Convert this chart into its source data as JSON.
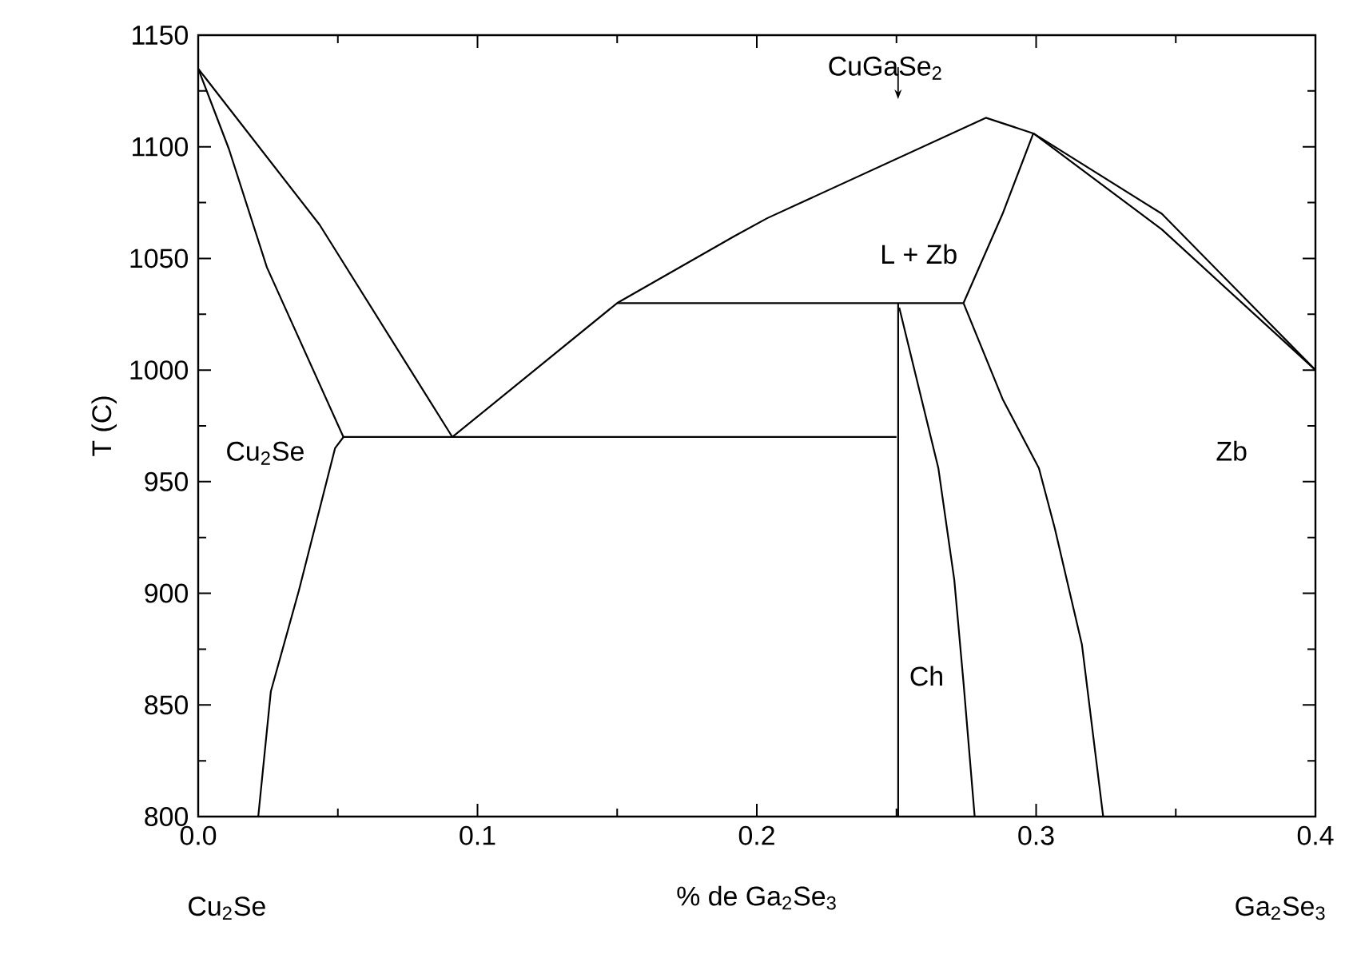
{
  "chart_data": {
    "type": "line",
    "xlabel": "% de Ga$_{2}$Se$_{3}$",
    "ylabel": "T (C)",
    "xlim": [
      0,
      0.4
    ],
    "ylim": [
      800,
      1150
    ],
    "xticks": [
      {
        "value": 0,
        "label": "0.0"
      },
      0.1,
      0.2,
      0.3,
      0.4
    ],
    "yticks": [
      800,
      850,
      900,
      950,
      1000,
      1050,
      1100,
      1150
    ],
    "marker": "none",
    "line_style": "solid",
    "series": [
      {
        "color": "#000000",
        "x": [
          0,
          0.0435,
          0.091
        ],
        "values": [
          1135,
          1065,
          970
        ]
      },
      {
        "color": "#000000",
        "x": [
          0,
          0.011,
          0.0246,
          0.052
        ],
        "values": [
          1135,
          1099,
          1046,
          970
        ]
      },
      {
        "color": "#000000",
        "x": [
          0.052,
          0.049,
          0.036,
          0.026,
          0.0215
        ],
        "values": [
          970,
          965,
          901,
          856,
          800
        ]
      },
      {
        "color": "#000000",
        "x": [
          0.052,
          0.25
        ],
        "values": [
          970,
          970
        ]
      },
      {
        "color": "#000000",
        "x": [
          0.091,
          0.15,
          0.192,
          0.2037,
          0.282,
          0.299,
          0.345,
          0.4
        ],
        "values": [
          970,
          1030,
          1060,
          1068,
          1113,
          1106,
          1070,
          1000
        ]
      },
      {
        "color": "#000000",
        "x": [
          0.299,
          0.345,
          0.4
        ],
        "values": [
          1106,
          1063,
          1000
        ]
      },
      {
        "color": "#000000",
        "x": [
          0.15,
          0.274
        ],
        "values": [
          1030,
          1030
        ]
      },
      {
        "color": "#000000",
        "x": [
          0.274,
          0.288,
          0.299
        ],
        "values": [
          1030,
          1070,
          1106
        ]
      },
      {
        "color": "#000000",
        "x": [
          0.2506,
          0.2506
        ],
        "values": [
          1030,
          800
        ]
      },
      {
        "color": "#000000",
        "x": [
          0.251,
          0.265,
          0.2707,
          0.274,
          0.278
        ],
        "values": [
          1028,
          956,
          906,
          860,
          800
        ]
      },
      {
        "color": "#000000",
        "x": [
          0.274,
          0.288,
          0.301,
          0.3067,
          0.3164,
          0.324
        ],
        "values": [
          1030,
          987,
          956,
          929,
          877,
          800
        ]
      }
    ],
    "annotations": [
      "CuGaSe$_{2}$",
      "L + Zb",
      "Cu$_{2}$Se",
      "Zb",
      "Ch",
      "Cu$_{2}$Se",
      "Ga$_{2}$Se$_{3}$"
    ]
  }
}
